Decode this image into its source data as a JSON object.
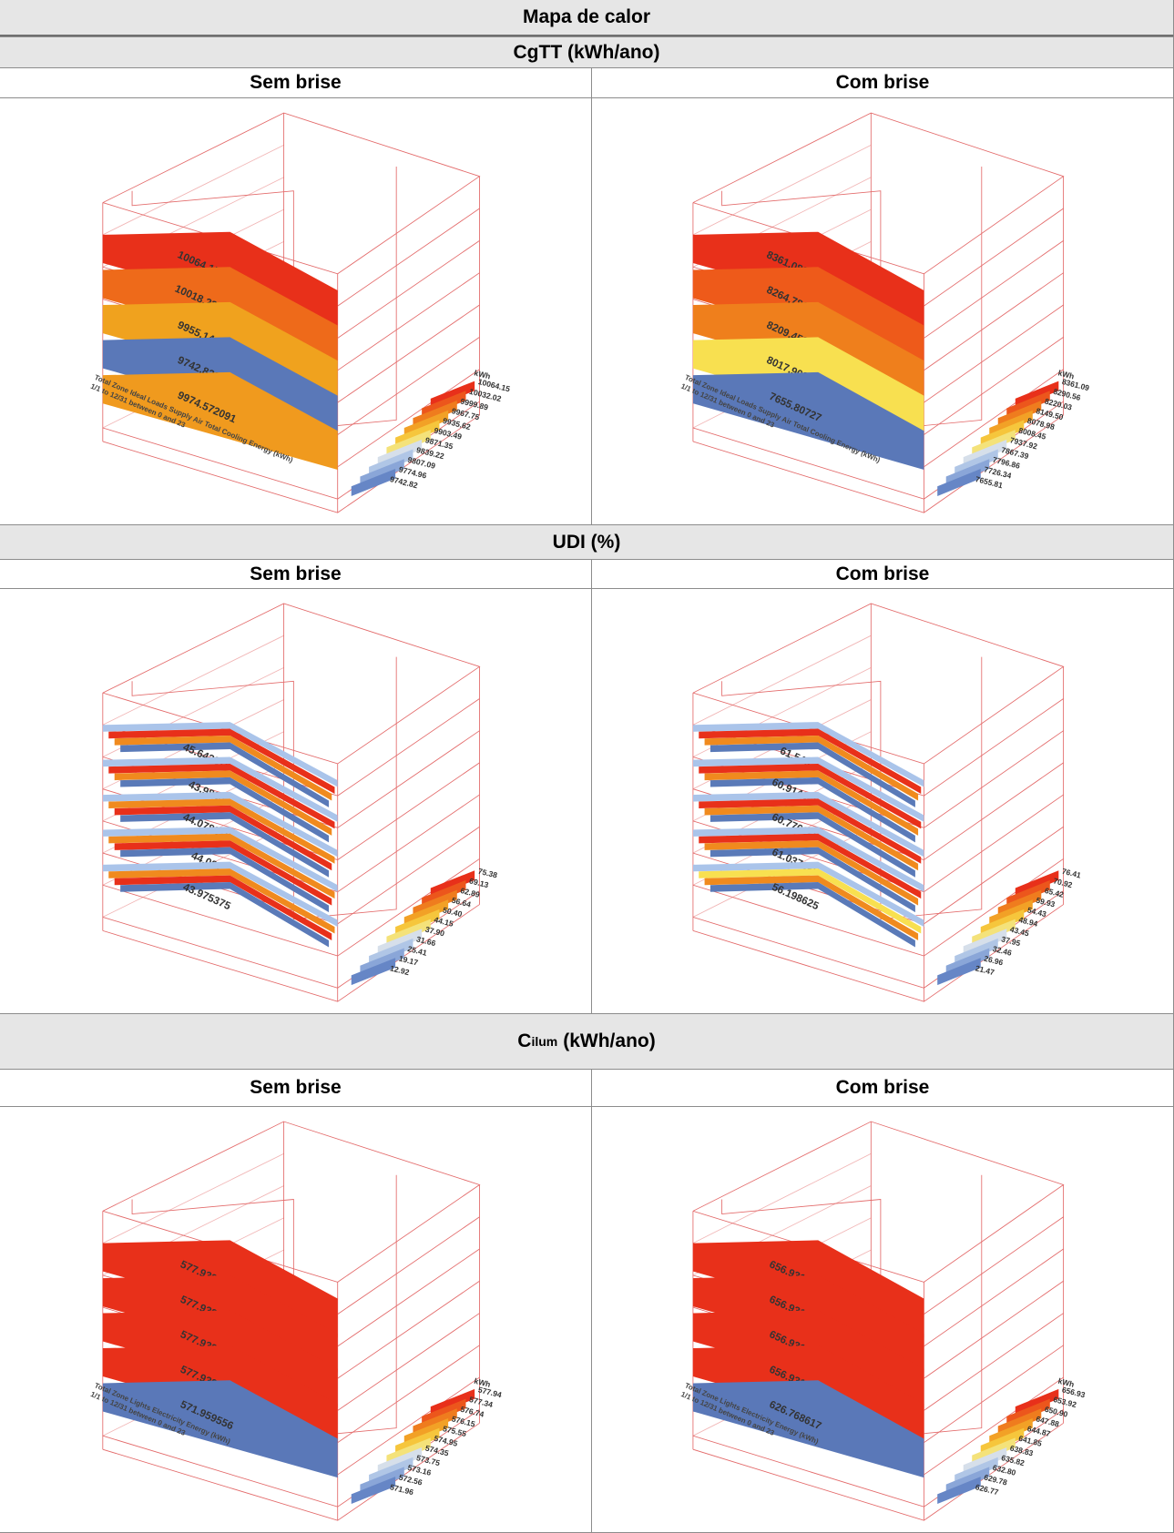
{
  "title": "Mapa de calor",
  "sections": [
    {
      "title": "CgTT (kWh/ano)",
      "panels": [
        {
          "header": "Sem brise",
          "floors": [
            {
              "label": "10064.15104",
              "colors": [
                "#e8301a"
              ]
            },
            {
              "label": "10018.231278",
              "colors": [
                "#ee6a1a"
              ]
            },
            {
              "label": "9955.144567",
              "colors": [
                "#f0a21e"
              ]
            },
            {
              "label": "9742.823476",
              "colors": [
                "#5a78b8"
              ]
            },
            {
              "label": "9974.572091",
              "colors": [
                "#f09a1e"
              ]
            }
          ],
          "legend": {
            "unit": "kWh",
            "values": [
              "10064.15",
              "10032.02",
              "9999.89",
              "9967.75",
              "9935.62",
              "9903.49",
              "9871.35",
              "9839.22",
              "9807.09",
              "9774.96",
              "9742.82"
            ]
          },
          "caption": [
            "Total Zone Ideal Loads Supply Air Total Cooling Energy (kWh)",
            "1/1 to 12/31 between 0 and 23"
          ]
        },
        {
          "header": "Com brise",
          "floors": [
            {
              "label": "8361.089352",
              "colors": [
                "#e8301a"
              ]
            },
            {
              "label": "8264.786234",
              "colors": [
                "#ee5a1a"
              ]
            },
            {
              "label": "8209.459288",
              "colors": [
                "#ef7f1c"
              ]
            },
            {
              "label": "8017.903988",
              "colors": [
                "#f8e050"
              ]
            },
            {
              "label": "7655.80727",
              "colors": [
                "#5a78b8"
              ]
            }
          ],
          "legend": {
            "unit": "kWh",
            "values": [
              "8361.09",
              "8290.56",
              "8220.03",
              "8149.50",
              "8078.98",
              "8008.45",
              "7937.92",
              "7867.39",
              "7796.86",
              "7726.34",
              "7655.81"
            ]
          },
          "caption": [
            "Total Zone Ideal Loads Supply Air Total Cooling Energy (kWh)",
            "1/1 to 12/31 between 0 and 23"
          ]
        }
      ]
    },
    {
      "title": "UDI (%)",
      "panels": [
        {
          "header": "Sem brise",
          "floors": [
            {
              "label": "45.643375",
              "colors": [
                "#aac4ea",
                "#e8301a",
                "#f08a1e",
                "#5a7ab8"
              ]
            },
            {
              "label": "43.9885",
              "colors": [
                "#aac4ea",
                "#e8301a",
                "#f08a1e",
                "#5a7ab8"
              ]
            },
            {
              "label": "44.078875",
              "colors": [
                "#aac4ea",
                "#f08a1e",
                "#e8301a",
                "#5a7ab8"
              ]
            },
            {
              "label": "44.087",
              "colors": [
                "#aac4ea",
                "#f08a1e",
                "#e8301a",
                "#5a7ab8"
              ]
            },
            {
              "label": "43.975375",
              "colors": [
                "#aac4ea",
                "#f08a1e",
                "#e8301a",
                "#5a7ab8"
              ]
            }
          ],
          "legend": {
            "values": [
              "75.38",
              "69.13",
              "62.89",
              "56.64",
              "50.40",
              "44.15",
              "37.90",
              "31.66",
              "25.41",
              "19.17",
              "12.92"
            ]
          }
        },
        {
          "header": "Com brise",
          "floors": [
            {
              "label": "61.545",
              "colors": [
                "#aac4ea",
                "#e8301a",
                "#f08a1e",
                "#5a7ab8"
              ]
            },
            {
              "label": "60.914125",
              "colors": [
                "#aac4ea",
                "#e8301a",
                "#f08a1e",
                "#5a7ab8"
              ]
            },
            {
              "label": "60.776125",
              "colors": [
                "#aac4ea",
                "#e8301a",
                "#f08a1e",
                "#5a7ab8"
              ]
            },
            {
              "label": "61.037125",
              "colors": [
                "#aac4ea",
                "#e8301a",
                "#f08a1e",
                "#5a7ab8"
              ]
            },
            {
              "label": "56.198625",
              "colors": [
                "#aac4ea",
                "#f8e050",
                "#f08a1e",
                "#5a7ab8"
              ]
            }
          ],
          "legend": {
            "values": [
              "76.41",
              "70.92",
              "65.42",
              "59.93",
              "54.43",
              "48.94",
              "43.45",
              "37.95",
              "32.46",
              "26.96",
              "21.47"
            ]
          }
        }
      ]
    },
    {
      "symbol": "C",
      "subscript": "ilum",
      "unit": "(kWh/ano)",
      "panels": [
        {
          "header": "Sem brise",
          "floors": [
            {
              "label": "577.939084",
              "colors": [
                "#e8301a"
              ]
            },
            {
              "label": "577.939084",
              "colors": [
                "#e8301a"
              ]
            },
            {
              "label": "577.939084",
              "colors": [
                "#e8301a"
              ]
            },
            {
              "label": "577.939084",
              "colors": [
                "#e8301a"
              ]
            },
            {
              "label": "571.959556",
              "colors": [
                "#5a78b8"
              ]
            }
          ],
          "legend": {
            "unit": "kWh",
            "values": [
              "577.94",
              "577.34",
              "576.74",
              "576.15",
              "575.55",
              "574.95",
              "574.35",
              "573.75",
              "573.16",
              "572.56",
              "571.96"
            ]
          },
          "caption": [
            "Total Zone Lights Electricity Energy (kWh)",
            "1/1 to 12/31 between 0 and 23"
          ]
        },
        {
          "header": "Com brise",
          "floors": [
            {
              "label": "656.931796",
              "colors": [
                "#e8301a"
              ]
            },
            {
              "label": "656.931796",
              "colors": [
                "#e8301a"
              ]
            },
            {
              "label": "656.931796",
              "colors": [
                "#e8301a"
              ]
            },
            {
              "label": "656.931796",
              "colors": [
                "#e8301a"
              ]
            },
            {
              "label": "626.768617",
              "colors": [
                "#5a78b8"
              ]
            }
          ],
          "legend": {
            "unit": "kWh",
            "values": [
              "656.93",
              "653.92",
              "650.90",
              "647.88",
              "644.87",
              "641.85",
              "638.83",
              "635.82",
              "632.80",
              "629.78",
              "626.77"
            ]
          },
          "caption": [
            "Total Zone Lights Electricity Energy (kWh)",
            "1/1 to 12/31 between 0 and 23"
          ]
        }
      ]
    }
  ]
}
